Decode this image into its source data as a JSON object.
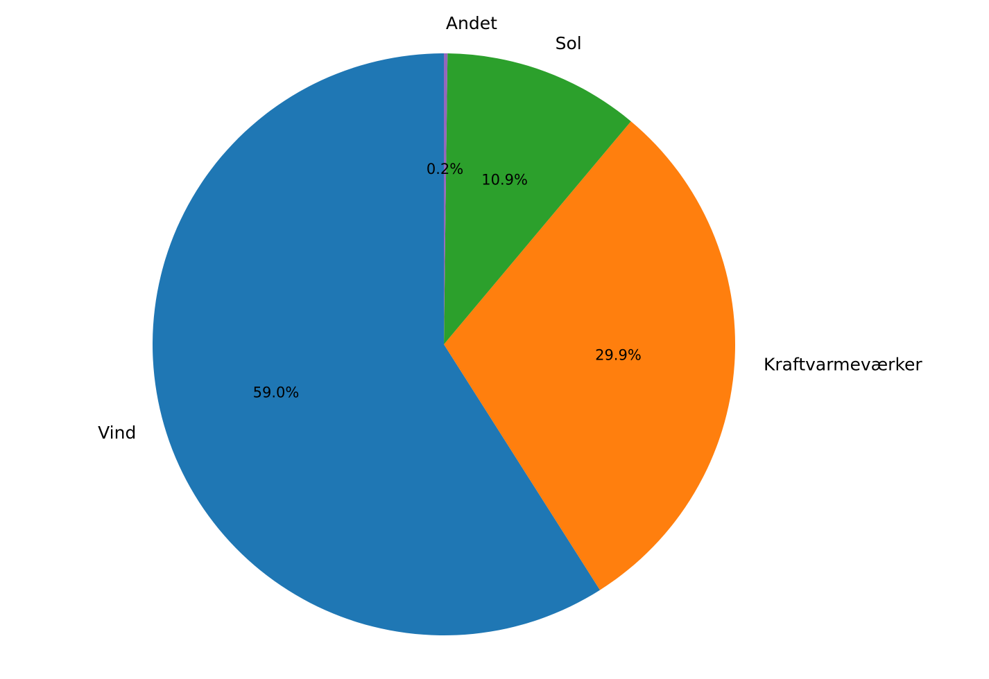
{
  "chart_data": {
    "type": "pie",
    "categories": [
      "Vind",
      "Kraftvarmeværker",
      "Sol",
      "Andet"
    ],
    "values": [
      59.0,
      29.9,
      10.9,
      0.2
    ],
    "value_labels": [
      "59.0%",
      "29.9%",
      "10.9%",
      "0.2%"
    ],
    "colors": [
      "#1f77b4",
      "#ff7f0e",
      "#2ca02c",
      "#9467bd"
    ]
  }
}
